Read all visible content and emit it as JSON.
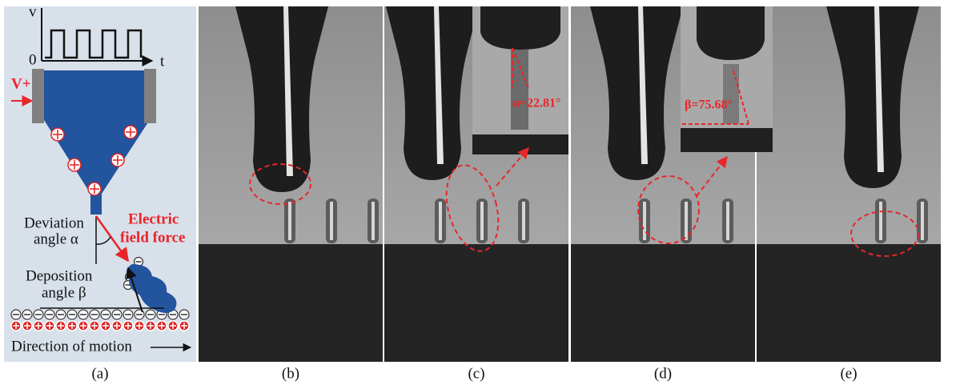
{
  "panel_a": {
    "axis_v": "v",
    "origin": "0",
    "axis_t": "t",
    "voltage": "V+",
    "deviation": [
      "Deviation",
      "angle α"
    ],
    "force": [
      "Electric",
      "field force"
    ],
    "deposition": [
      "Deposition",
      "angle β"
    ],
    "motion": "Direction of motion"
  },
  "insets": {
    "alpha": "α=22.81°",
    "beta": "β=75.68°"
  },
  "captions": [
    "(a)",
    "(b)",
    "(c)",
    "(d)",
    "(e)"
  ]
}
